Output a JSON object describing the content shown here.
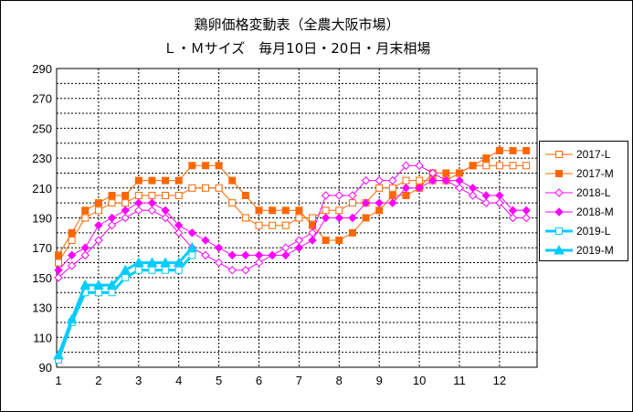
{
  "title_line1": "鶏卵価格変動表（全農大阪市場）",
  "title_line2": "Ｌ・Ｍサイズ　毎月10日・20日・月末相場",
  "chart_data": {
    "type": "line",
    "title": "鶏卵価格変動表（全農大阪市場）",
    "subtitle": "Ｌ・Ｍサイズ　毎月10日・20日・月末相場",
    "xlabel": "",
    "ylabel": "",
    "ylim": [
      90,
      290
    ],
    "yticks": [
      90,
      110,
      130,
      150,
      170,
      190,
      210,
      230,
      250,
      270,
      290
    ],
    "xticks": [
      "1",
      "2",
      "3",
      "4",
      "5",
      "6",
      "7",
      "8",
      "9",
      "10",
      "11",
      "12"
    ],
    "points_per_month": 3,
    "grid": true,
    "legend_position": "right",
    "series": [
      {
        "name": "2017-L",
        "color": "#ff6600",
        "marker": "square-open",
        "width": 1,
        "values": [
          160,
          175,
          190,
          195,
          200,
          200,
          205,
          205,
          205,
          205,
          210,
          210,
          210,
          200,
          190,
          185,
          185,
          185,
          190,
          190,
          195,
          195,
          200,
          200,
          210,
          210,
          215,
          215,
          215,
          215,
          220,
          225,
          225,
          225,
          225,
          225
        ]
      },
      {
        "name": "2017-M",
        "color": "#ff6600",
        "marker": "square-filled",
        "width": 1,
        "values": [
          165,
          180,
          195,
          200,
          205,
          205,
          215,
          215,
          215,
          215,
          225,
          225,
          225,
          215,
          205,
          195,
          195,
          195,
          195,
          185,
          175,
          175,
          180,
          190,
          195,
          205,
          205,
          210,
          220,
          220,
          220,
          225,
          230,
          235,
          235,
          235
        ]
      },
      {
        "name": "2018-L",
        "color": "#ff00ff",
        "marker": "diamond-open",
        "width": 1,
        "values": [
          150,
          158,
          165,
          175,
          185,
          190,
          195,
          195,
          190,
          180,
          170,
          165,
          160,
          155,
          155,
          160,
          165,
          170,
          175,
          180,
          205,
          205,
          205,
          215,
          215,
          215,
          225,
          225,
          220,
          215,
          210,
          205,
          200,
          200,
          190,
          190
        ]
      },
      {
        "name": "2018-M",
        "color": "#ff00ff",
        "marker": "diamond-filled",
        "width": 1,
        "values": [
          155,
          165,
          170,
          185,
          190,
          195,
          200,
          200,
          195,
          185,
          180,
          175,
          170,
          165,
          165,
          165,
          165,
          165,
          170,
          175,
          190,
          190,
          190,
          200,
          200,
          200,
          210,
          210,
          215,
          215,
          215,
          210,
          205,
          205,
          195,
          195
        ]
      },
      {
        "name": "2019-L",
        "color": "#00ccff",
        "marker": "square-open",
        "width": 3,
        "values": [
          95,
          120,
          140,
          140,
          140,
          150,
          155,
          155,
          155,
          155,
          165
        ]
      },
      {
        "name": "2019-M",
        "color": "#00ccff",
        "marker": "triangle-filled",
        "width": 3,
        "values": [
          98,
          122,
          145,
          145,
          145,
          155,
          160,
          160,
          160,
          160,
          170
        ]
      }
    ]
  }
}
